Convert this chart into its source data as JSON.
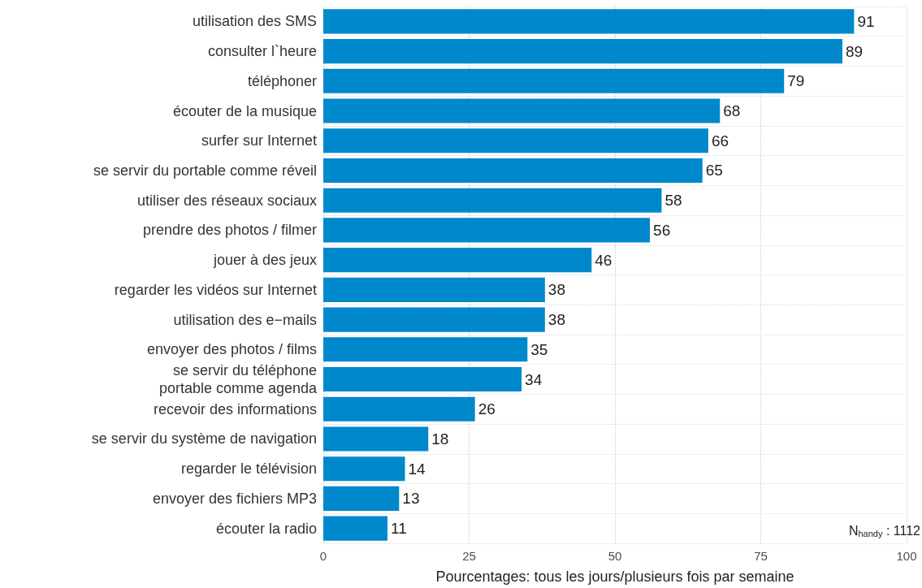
{
  "chart_data": {
    "type": "bar",
    "orientation": "horizontal",
    "xlabel": "Pourcentages: tous les jours/plusieurs fois par semaine",
    "categories": [
      "utilisation des SMS",
      "consulter l`heure",
      "téléphoner",
      "écouter de la musique",
      "surfer sur Internet",
      "se servir du portable comme réveil",
      "utiliser des réseaux sociaux",
      "prendre des photos / filmer",
      "jouer à des jeux",
      "regarder les vidéos sur Internet",
      "utilisation des e−mails",
      "envoyer des photos / films",
      "se servir du téléphone\nportable comme agenda",
      "recevoir des informations",
      "se servir du système de navigation",
      "regarder le télévision",
      "envoyer des fichiers MP3",
      "écouter la radio"
    ],
    "values": [
      91,
      89,
      79,
      68,
      66,
      65,
      58,
      56,
      46,
      38,
      38,
      35,
      34,
      26,
      18,
      14,
      13,
      11
    ],
    "color": "#0088cc",
    "data_labels": true,
    "xlim": [
      0,
      100
    ],
    "xticks": [
      0,
      25,
      50,
      75,
      100
    ],
    "grid": true,
    "annotations": [
      "N$_{handy}$ : 1112"
    ]
  }
}
